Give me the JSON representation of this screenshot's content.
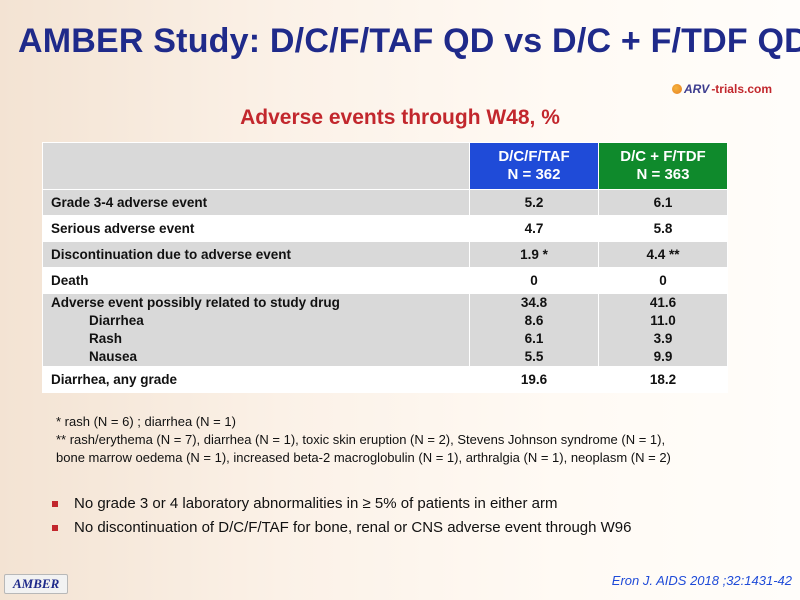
{
  "slide": {
    "title": "AMBER Study: D/C/F/TAF QD vs D/C + F/TDF QD",
    "subtitle": "Adverse events through W48, %",
    "logo": {
      "arv": "ARV",
      "rest": "-trials.com"
    }
  },
  "table": {
    "columns": [
      {
        "line1": "D/C/F/TAF",
        "line2": "N = 362"
      },
      {
        "line1": "D/C + F/TDF",
        "line2": "N = 363"
      }
    ],
    "rows": [
      {
        "label": "Grade 3-4 adverse event",
        "v1": "5.2",
        "v2": "6.1"
      },
      {
        "label": "Serious adverse event",
        "v1": "4.7",
        "v2": "5.8"
      },
      {
        "label": "Discontinuation due to adverse event",
        "v1": "1.9 *",
        "v2": "4.4 **"
      },
      {
        "label": "Death",
        "v1": "0",
        "v2": "0"
      },
      {
        "label": "Adverse event possibly related to study drug",
        "v1": "34.8",
        "v2": "41.6",
        "subitems": [
          {
            "label": "Diarrhea",
            "v1": "8.6",
            "v2": "11.0"
          },
          {
            "label": "Rash",
            "v1": "6.1",
            "v2": "3.9"
          },
          {
            "label": "Nausea",
            "v1": "5.5",
            "v2": "9.9"
          }
        ]
      },
      {
        "label": "Diarrhea, any grade",
        "v1": "19.6",
        "v2": "18.2"
      }
    ]
  },
  "footnotes": [
    "* rash (N = 6) ; diarrhea (N = 1)",
    "** rash/erythema (N = 7), diarrhea (N = 1), toxic skin eruption (N = 2), Stevens Johnson syndrome (N = 1),",
    "bone marrow oedema (N = 1), increased beta-2 macroglobulin (N = 1), arthralgia (N = 1), neoplasm (N = 2)"
  ],
  "bullets": [
    "No grade 3 or 4 laboratory abnormalities in ≥ 5% of patients in either arm",
    "No discontinuation of D/C/F/TAF for bone, renal or CNS adverse event through W96"
  ],
  "badge": "AMBER",
  "citation": "Eron J. AIDS 2018 ;32:1431-42",
  "colors": {
    "title": "#1f2a8a",
    "accent_red": "#c2272d",
    "col_taf": "#1f4bd8",
    "col_tdf": "#0f8a2c"
  }
}
